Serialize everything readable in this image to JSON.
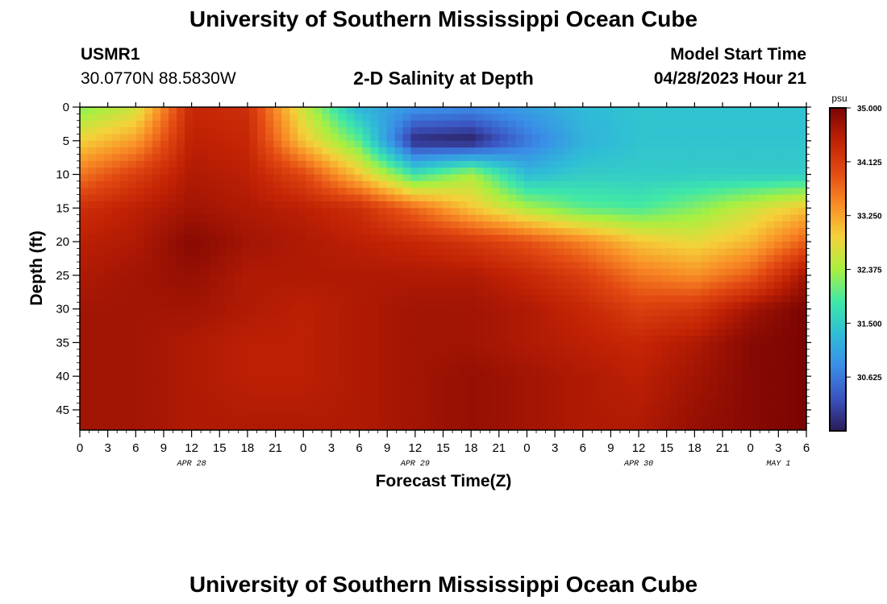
{
  "header": {
    "title_top": "University of Southern Mississippi Ocean Cube",
    "title_bottom": "University of Southern Mississippi Ocean Cube",
    "station_id": "USMR1",
    "station_coords": "30.0770N  88.5830W",
    "plot_title": "2-D Salinity at Depth",
    "start_label": "Model Start Time",
    "start_value": "04/28/2023 Hour 21"
  },
  "colors": {
    "colormap": [
      "#2a1a58",
      "#3b53c0",
      "#3a8de8",
      "#2fbdd6",
      "#3fe8a8",
      "#a8f040",
      "#f4d23a",
      "#f98d26",
      "#e34a12",
      "#c02104",
      "#7a0403"
    ]
  },
  "chart_data": {
    "type": "heatmap",
    "title": "2-D Salinity at Depth",
    "xlabel": "Forecast Time(Z)",
    "ylabel": "Depth (ft)",
    "xlim": [
      0,
      78
    ],
    "ylim": [
      48,
      0
    ],
    "x_tick_labels": [
      "0",
      "3",
      "6",
      "9",
      "12",
      "15",
      "18",
      "21",
      "0",
      "3",
      "6",
      "9",
      "12",
      "15",
      "18",
      "21",
      "0",
      "3",
      "6",
      "9",
      "12",
      "15",
      "18",
      "21",
      "0",
      "3",
      "6"
    ],
    "y_ticks": [
      0,
      5,
      10,
      15,
      20,
      25,
      30,
      35,
      40,
      45
    ],
    "date_labels": [
      {
        "x": 12,
        "text": "APR 28"
      },
      {
        "x": 36,
        "text": "APR 29"
      },
      {
        "x": 60,
        "text": "APR 30"
      },
      {
        "x": 75,
        "text": "MAY 1"
      }
    ],
    "colorbar": {
      "unit": "psu",
      "min": 29.75,
      "max": 35.0,
      "tick_labels": [
        "35.000",
        "34.125",
        "33.250",
        "32.375",
        "31.500",
        "30.625"
      ]
    },
    "x_hours": [
      0,
      6,
      12,
      18,
      24,
      30,
      36,
      42,
      48,
      54,
      60,
      66,
      72,
      78
    ],
    "depths_ft": [
      0,
      5,
      10,
      15,
      20,
      25,
      30,
      35,
      40,
      48
    ],
    "salinity_psu": [
      [
        32.2,
        32.6,
        34.4,
        34.3,
        32.6,
        31.2,
        30.9,
        30.8,
        31.0,
        31.3,
        31.4,
        31.4,
        31.4,
        31.4
      ],
      [
        32.9,
        33.3,
        34.5,
        34.4,
        33.0,
        32.0,
        29.9,
        29.8,
        30.6,
        31.2,
        31.4,
        31.4,
        31.4,
        31.4
      ],
      [
        33.6,
        34.1,
        34.6,
        34.5,
        34.0,
        33.0,
        31.8,
        32.4,
        31.3,
        31.5,
        31.5,
        31.5,
        31.5,
        31.5
      ],
      [
        34.3,
        34.5,
        34.7,
        34.6,
        34.5,
        34.3,
        33.7,
        33.0,
        32.4,
        32.0,
        31.9,
        32.2,
        32.6,
        33.0
      ],
      [
        34.5,
        34.6,
        34.9,
        34.7,
        34.6,
        34.5,
        34.4,
        34.2,
        33.9,
        33.5,
        33.0,
        32.8,
        33.1,
        33.8
      ],
      [
        34.6,
        34.7,
        34.8,
        34.6,
        34.6,
        34.6,
        34.6,
        34.6,
        34.4,
        34.1,
        33.6,
        33.4,
        33.8,
        34.7
      ],
      [
        34.7,
        34.7,
        34.7,
        34.6,
        34.5,
        34.6,
        34.7,
        34.7,
        34.6,
        34.4,
        34.1,
        34.2,
        34.7,
        35.0
      ],
      [
        34.7,
        34.7,
        34.6,
        34.5,
        34.5,
        34.6,
        34.7,
        34.7,
        34.6,
        34.5,
        34.4,
        34.6,
        34.9,
        35.0
      ],
      [
        34.7,
        34.7,
        34.6,
        34.5,
        34.5,
        34.6,
        34.7,
        34.8,
        34.7,
        34.6,
        34.5,
        34.7,
        34.9,
        35.0
      ],
      [
        34.7,
        34.7,
        34.6,
        34.6,
        34.6,
        34.6,
        34.7,
        34.8,
        34.7,
        34.6,
        34.6,
        34.8,
        34.9,
        35.0
      ]
    ]
  }
}
